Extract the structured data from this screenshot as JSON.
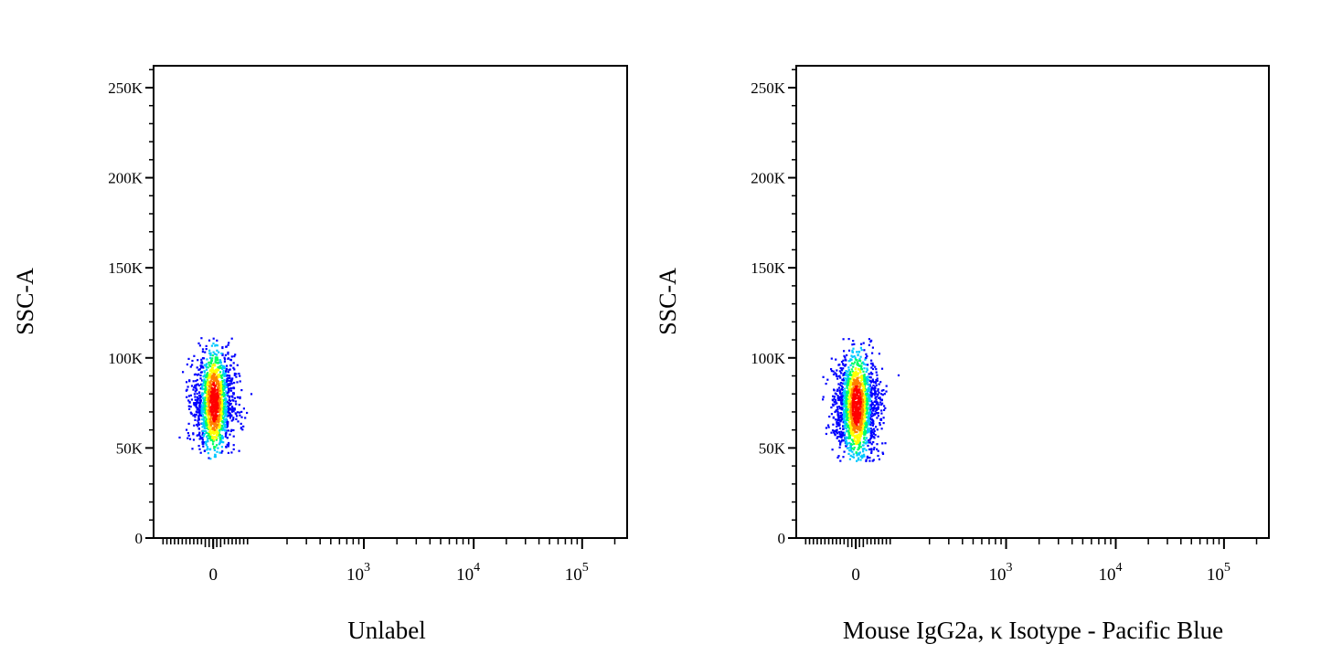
{
  "chart_data": [
    {
      "type": "scatter",
      "title": "",
      "xlabel": "Unlabel",
      "ylabel": "SSC-A",
      "x_scale": "biexponential",
      "y_scale": "linear",
      "ylim": [
        0,
        262144
      ],
      "yticks": [
        {
          "value": 0,
          "label": "0"
        },
        {
          "value": 50000,
          "label": "50K"
        },
        {
          "value": 100000,
          "label": "100K"
        },
        {
          "value": 150000,
          "label": "150K"
        },
        {
          "value": 200000,
          "label": "200K"
        },
        {
          "value": 250000,
          "label": "250K"
        }
      ],
      "xticks": [
        {
          "value": 0,
          "label": "0",
          "sup": ""
        },
        {
          "value": 1000,
          "label": "10",
          "sup": "3"
        },
        {
          "value": 10000,
          "label": "10",
          "sup": "4"
        },
        {
          "value": 100000,
          "label": "10",
          "sup": "5"
        }
      ],
      "population": {
        "x_center": 0,
        "x_spread": 160,
        "y_center": 76000,
        "y_min": 44000,
        "y_max": 112000,
        "events": 1500
      },
      "colormap": [
        "#0000ff",
        "#00c8ff",
        "#00ff64",
        "#ffff00",
        "#ff8000",
        "#ff0000"
      ],
      "grid": false
    },
    {
      "type": "scatter",
      "title": "",
      "xlabel": "Mouse IgG2a, κ Isotype - Pacific Blue",
      "ylabel": "SSC-A",
      "x_scale": "biexponential",
      "y_scale": "linear",
      "ylim": [
        0,
        262144
      ],
      "yticks": [
        {
          "value": 0,
          "label": "0"
        },
        {
          "value": 50000,
          "label": "50K"
        },
        {
          "value": 100000,
          "label": "100K"
        },
        {
          "value": 150000,
          "label": "150K"
        },
        {
          "value": 200000,
          "label": "200K"
        },
        {
          "value": 250000,
          "label": "250K"
        }
      ],
      "xticks": [
        {
          "value": 0,
          "label": "0",
          "sup": ""
        },
        {
          "value": 1000,
          "label": "10",
          "sup": "3"
        },
        {
          "value": 10000,
          "label": "10",
          "sup": "4"
        },
        {
          "value": 100000,
          "label": "10",
          "sup": "5"
        }
      ],
      "population": {
        "x_center": 0,
        "x_spread": 170,
        "y_center": 74000,
        "y_min": 43000,
        "y_max": 112000,
        "events": 1700
      },
      "colormap": [
        "#0000ff",
        "#00c8ff",
        "#00ff64",
        "#ffff00",
        "#ff8000",
        "#ff0000"
      ],
      "grid": false
    }
  ]
}
